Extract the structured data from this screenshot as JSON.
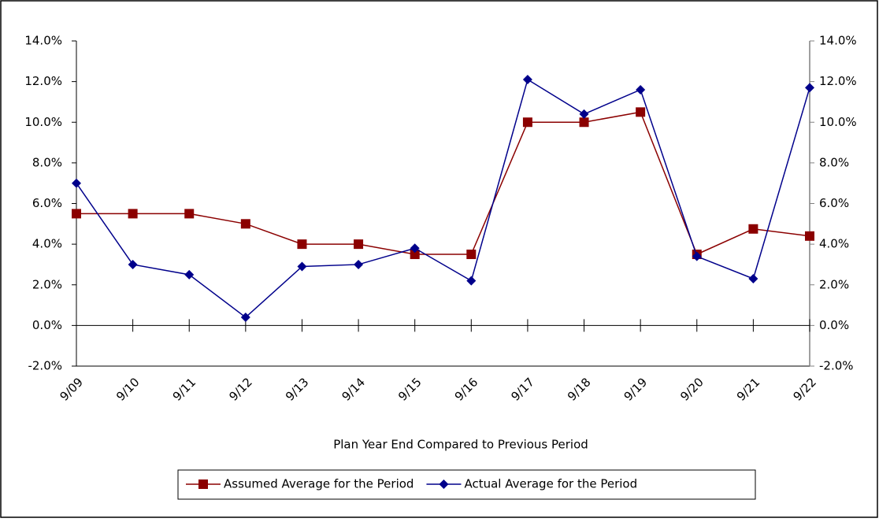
{
  "chart_data": {
    "type": "line",
    "xlabel": "Plan Year  End Compared to Previous Period",
    "categories": [
      "9/09",
      "9/10",
      "9/11",
      "9/12",
      "9/13",
      "9/14",
      "9/15",
      "9/16",
      "9/17",
      "9/18",
      "9/19",
      "9/20",
      "9/21",
      "9/22"
    ],
    "series": [
      {
        "name": "Assumed Average for the Period",
        "color": "#8b0000",
        "marker": "square",
        "values": [
          5.5,
          5.5,
          5.5,
          5.0,
          4.0,
          4.0,
          3.5,
          3.5,
          10.0,
          10.0,
          10.5,
          3.5,
          4.75,
          4.4
        ]
      },
      {
        "name": "Actual Average for the Period",
        "color": "#00008b",
        "marker": "diamond",
        "values": [
          7.0,
          3.0,
          2.5,
          0.4,
          2.9,
          3.0,
          3.8,
          2.2,
          12.1,
          10.4,
          11.6,
          3.4,
          2.3,
          11.7
        ]
      }
    ],
    "ylim": [
      -2,
      14
    ],
    "yticks": [
      {
        "value": -2,
        "label": "-2.0%"
      },
      {
        "value": 0,
        "label": "0.0%"
      },
      {
        "value": 2,
        "label": "2.0%"
      },
      {
        "value": 4,
        "label": "4.0%"
      },
      {
        "value": 6,
        "label": "6.0%"
      },
      {
        "value": 8,
        "label": "8.0%"
      },
      {
        "value": 10,
        "label": "10.0%"
      },
      {
        "value": 12,
        "label": "12.0%"
      },
      {
        "value": 14,
        "label": "14.0%"
      }
    ],
    "y2lim": [
      -2,
      14
    ],
    "y2ticks": [
      {
        "value": -2,
        "label": "-2.0%"
      },
      {
        "value": 0,
        "label": "0.0%"
      },
      {
        "value": 2,
        "label": "2.0%"
      },
      {
        "value": 4,
        "label": "4.0%"
      },
      {
        "value": 6,
        "label": "6.0%"
      },
      {
        "value": 8,
        "label": "8.0%"
      },
      {
        "value": 10,
        "label": "10.0%"
      },
      {
        "value": 12,
        "label": "12.0%"
      },
      {
        "value": 14,
        "label": "14.0%"
      }
    ],
    "grid": false,
    "legend": "bottom"
  }
}
